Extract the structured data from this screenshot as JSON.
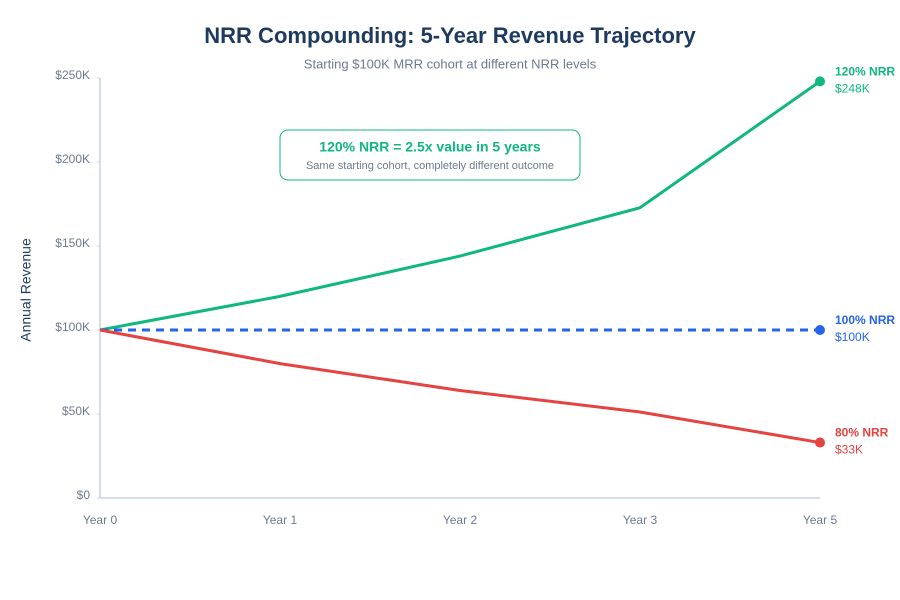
{
  "chart_data": {
    "type": "line",
    "title": "NRR Compounding: 5-Year Revenue Trajectory",
    "subtitle": "Starting $100K MRR cohort at different NRR levels",
    "y_label": "Annual Revenue",
    "annotation": {
      "title": "120% NRR = 2.5x value in 5 years",
      "text": "Same starting cohort, completely different outcome"
    },
    "categories": [
      "Year 0",
      "Year 1",
      "Year 2",
      "Year 3",
      "Year 5"
    ],
    "series": [
      {
        "name": "120% NRR",
        "color": "#10b77f",
        "values": [
          100,
          120,
          144,
          172.8,
          248
        ],
        "value_labels": [
          null,
          null,
          null,
          null,
          "$248K"
        ]
      },
      {
        "name": "100% NRR",
        "color": "#2563eb",
        "dashed": true,
        "values": [
          100,
          100,
          100,
          100,
          100
        ],
        "value_labels": [
          null,
          null,
          null,
          null,
          "$100K"
        ]
      },
      {
        "name": "80% NRR",
        "color": "#e5433f",
        "values": [
          100,
          80,
          64,
          51.2,
          33
        ],
        "value_labels": [
          null,
          null,
          null,
          null,
          "$33K"
        ]
      }
    ],
    "ylim": [
      0,
      250
    ],
    "yticks": [
      {
        "value": 0,
        "label": "$0"
      },
      {
        "value": 50,
        "label": "$50K"
      },
      {
        "value": 100,
        "label": "$100K"
      },
      {
        "value": 150,
        "label": "$150K"
      },
      {
        "value": 200,
        "label": "$200K"
      },
      {
        "value": 250,
        "label": "$250K"
      }
    ],
    "grid": false
  }
}
